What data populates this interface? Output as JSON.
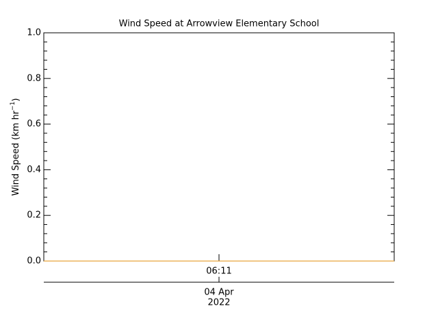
{
  "chart_data": {
    "type": "line",
    "title": "Wind Speed at Arrowview Elementary School",
    "y_label": "Wind Speed (km hr",
    "y_label_sup": "−1",
    "y_label_end": ")",
    "x_tick_label": "06:11",
    "date_day": "04 Apr",
    "date_year": "2022",
    "series": [
      {
        "color": "#e8a33a",
        "values": [
          0,
          0
        ]
      }
    ],
    "ylim": [
      0,
      1
    ],
    "yticks": [
      {
        "value": 0,
        "label": "0.0"
      },
      {
        "value": 0.2,
        "label": "0.2"
      },
      {
        "value": 0.4,
        "label": "0.4"
      },
      {
        "value": 0.6,
        "label": "0.6"
      },
      {
        "value": 0.8,
        "label": "0.8"
      },
      {
        "value": 1,
        "label": "1.0"
      }
    ]
  }
}
